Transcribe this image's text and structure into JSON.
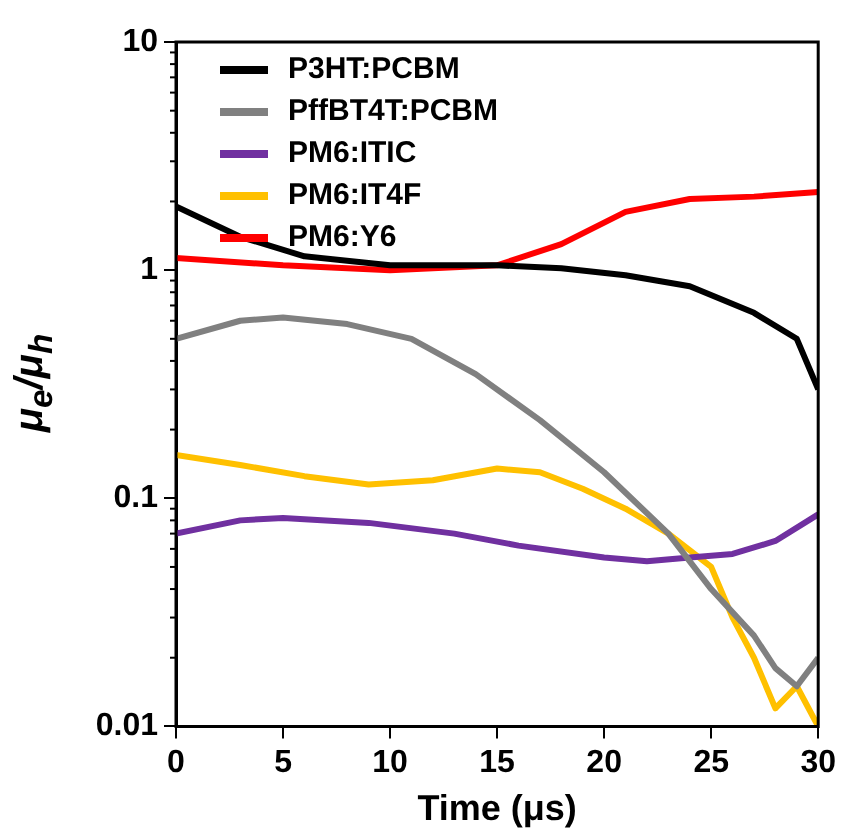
{
  "chart_data": {
    "type": "line",
    "xlabel": "Time (μs)",
    "ylabel": "μ$_{e}$/μ$_{h}$",
    "log": "y",
    "grid": false,
    "legend": "top left",
    "marker": "none",
    "line_style": "solid",
    "xlim": [
      0,
      30
    ],
    "xticks": [
      0,
      5,
      10,
      15,
      20,
      25,
      30
    ],
    "ylim": [
      0.01,
      10
    ],
    "yticks": [
      0.01,
      0.1,
      1,
      10
    ],
    "series": [
      {
        "name": "P3HT:PCBM",
        "color": "#000000",
        "x": [
          0,
          3,
          6,
          10,
          15,
          18,
          21,
          24,
          27,
          29,
          30
        ],
        "values": [
          1.9,
          1.4,
          1.15,
          1.05,
          1.05,
          1.02,
          0.95,
          0.85,
          0.65,
          0.5,
          0.3
        ]
      },
      {
        "name": "PffBT4T:PCBM",
        "color": "#808080",
        "x": [
          0,
          3,
          5,
          8,
          11,
          14,
          17,
          20,
          23,
          25,
          27,
          28,
          29,
          30
        ],
        "values": [
          0.5,
          0.6,
          0.62,
          0.58,
          0.5,
          0.35,
          0.22,
          0.13,
          0.07,
          0.04,
          0.025,
          0.018,
          0.015,
          0.02
        ]
      },
      {
        "name": "PM6:ITIC",
        "color": "#7030a0",
        "x": [
          0,
          3,
          5,
          9,
          13,
          16,
          20,
          22,
          24,
          26,
          28,
          30
        ],
        "values": [
          0.07,
          0.08,
          0.082,
          0.078,
          0.07,
          0.062,
          0.055,
          0.053,
          0.055,
          0.057,
          0.065,
          0.085
        ]
      },
      {
        "name": "PM6:IT4F",
        "color": "#ffc000",
        "x": [
          0,
          3,
          6,
          9,
          12,
          15,
          17,
          19,
          21,
          23,
          25,
          26,
          27,
          28,
          29,
          30
        ],
        "values": [
          0.155,
          0.14,
          0.125,
          0.115,
          0.12,
          0.135,
          0.13,
          0.11,
          0.09,
          0.07,
          0.05,
          0.03,
          0.02,
          0.012,
          0.015,
          0.01
        ]
      },
      {
        "name": "PM6:Y6",
        "color": "#ff0000",
        "x": [
          0,
          5,
          10,
          15,
          18,
          21,
          24,
          27,
          30
        ],
        "values": [
          1.13,
          1.05,
          1.0,
          1.05,
          1.3,
          1.8,
          2.05,
          2.1,
          2.2
        ]
      }
    ]
  }
}
